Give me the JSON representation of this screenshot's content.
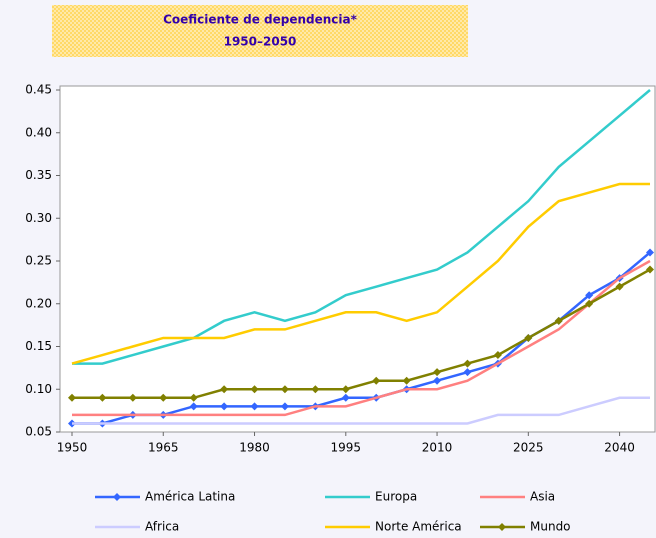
{
  "chart_data": {
    "type": "line",
    "title": "Coeficiente de dependencia*",
    "subtitle": "1950–2050",
    "categories": [
      "1950",
      null,
      null,
      "1965",
      null,
      null,
      "1980",
      null,
      null,
      "1995",
      null,
      null,
      "2010",
      null,
      null,
      "2025",
      null,
      null,
      "2040",
      null
    ],
    "ylim": [
      0.05,
      0.45
    ],
    "yticks": [
      0.05,
      {
        "value": 0.1,
        "label": "0.10"
      },
      0.15,
      {
        "value": 0.2,
        "label": "0.20"
      },
      0.25,
      {
        "value": 0.3,
        "label": "0.30"
      },
      0.35,
      {
        "value": 0.4,
        "label": "0.40"
      },
      0.45
    ],
    "series": [
      {
        "name": "América Latina",
        "color": "#3366ff",
        "marker": "diamond",
        "values": [
          0.06,
          0.06,
          0.07,
          0.07,
          0.08,
          0.08,
          0.08,
          0.08,
          0.08,
          0.09,
          0.09,
          0.1,
          0.11,
          0.12,
          0.13,
          0.16,
          0.18,
          0.21,
          0.23,
          0.26
        ]
      },
      {
        "name": "Europa",
        "color": "#33cccc",
        "values": [
          0.13,
          0.13,
          0.14,
          0.15,
          0.16,
          0.18,
          0.19,
          0.18,
          0.19,
          0.21,
          0.22,
          0.23,
          0.24,
          0.26,
          0.29,
          0.32,
          0.36,
          0.39,
          0.42,
          0.45
        ]
      },
      {
        "name": "Asia",
        "color": "#ff8080",
        "values": [
          0.07,
          0.07,
          0.07,
          0.07,
          0.07,
          0.07,
          0.07,
          0.07,
          0.08,
          0.08,
          0.09,
          0.1,
          0.1,
          0.11,
          0.13,
          0.15,
          0.17,
          0.2,
          0.23,
          0.25
        ]
      },
      {
        "name": "Africa",
        "color": "#ccccff",
        "values": [
          0.06,
          0.06,
          0.06,
          0.06,
          0.06,
          0.06,
          0.06,
          0.06,
          0.06,
          0.06,
          0.06,
          0.06,
          0.06,
          0.06,
          0.07,
          0.07,
          0.07,
          0.08,
          0.09,
          0.09
        ]
      },
      {
        "name": "Norte América",
        "color": "#ffcc00",
        "values": [
          0.13,
          0.14,
          0.15,
          0.16,
          0.16,
          0.16,
          0.17,
          0.17,
          0.18,
          0.19,
          0.19,
          0.18,
          0.19,
          0.22,
          0.25,
          0.29,
          0.32,
          0.33,
          0.34,
          0.34
        ]
      },
      {
        "name": "Mundo",
        "color": "#808000",
        "marker": "diamond",
        "values": [
          0.09,
          0.09,
          0.09,
          0.09,
          0.09,
          0.1,
          0.1,
          0.1,
          0.1,
          0.1,
          0.11,
          0.11,
          0.12,
          0.13,
          0.14,
          0.16,
          0.18,
          0.2,
          0.22,
          0.24
        ]
      }
    ]
  }
}
